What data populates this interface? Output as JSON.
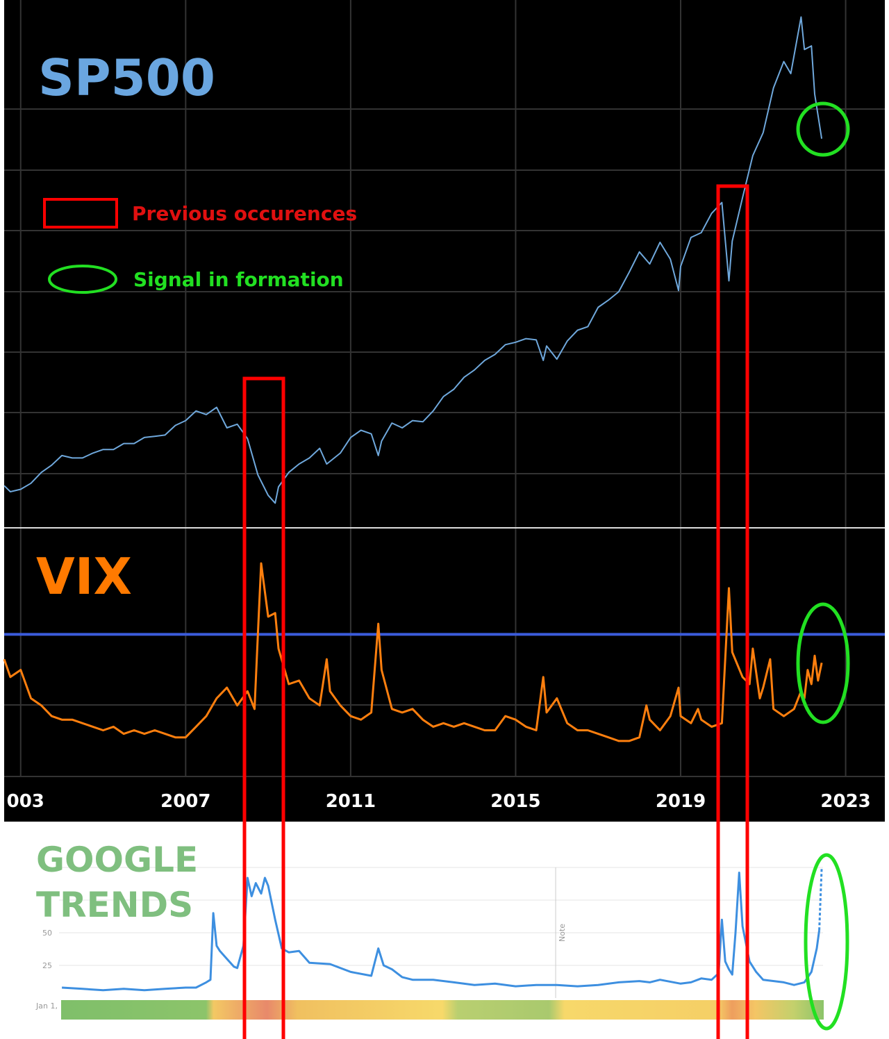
{
  "legend": {
    "previous": "Previous occurences",
    "signal": "Signal in formation"
  },
  "chart_data": [
    {
      "type": "line",
      "title": "SP500",
      "color": "#6fa8dc",
      "xlim": [
        2002.6,
        2023.95
      ],
      "ylim": [
        530,
        4911
      ],
      "x": [
        2002.6,
        2002.75,
        2003.0,
        2003.25,
        2003.5,
        2003.75,
        2004.0,
        2004.25,
        2004.5,
        2004.75,
        2005.0,
        2005.25,
        2005.5,
        2005.75,
        2006.0,
        2006.25,
        2006.5,
        2006.75,
        2007.0,
        2007.25,
        2007.5,
        2007.75,
        2008.0,
        2008.25,
        2008.5,
        2008.75,
        2009.0,
        2009.17,
        2009.25,
        2009.5,
        2009.75,
        2010.0,
        2010.25,
        2010.42,
        2010.75,
        2011.0,
        2011.25,
        2011.5,
        2011.67,
        2011.75,
        2012.0,
        2012.25,
        2012.5,
        2012.75,
        2013.0,
        2013.25,
        2013.5,
        2013.75,
        2014.0,
        2014.25,
        2014.5,
        2014.75,
        2015.0,
        2015.25,
        2015.5,
        2015.67,
        2015.75,
        2016.0,
        2016.25,
        2016.5,
        2016.75,
        2017.0,
        2017.25,
        2017.5,
        2017.75,
        2018.0,
        2018.25,
        2018.5,
        2018.75,
        2018.95,
        2019.0,
        2019.25,
        2019.5,
        2019.75,
        2020.0,
        2020.17,
        2020.25,
        2020.5,
        2020.75,
        2021.0,
        2021.25,
        2021.5,
        2021.67,
        2021.92,
        2022.0,
        2022.17,
        2022.25,
        2022.42
      ],
      "values": [
        880,
        830,
        850,
        900,
        990,
        1050,
        1130,
        1110,
        1110,
        1150,
        1180,
        1180,
        1230,
        1230,
        1280,
        1290,
        1300,
        1380,
        1420,
        1500,
        1470,
        1530,
        1360,
        1390,
        1270,
        970,
        800,
        735,
        870,
        990,
        1060,
        1110,
        1190,
        1060,
        1150,
        1280,
        1340,
        1310,
        1130,
        1250,
        1400,
        1360,
        1420,
        1410,
        1500,
        1620,
        1680,
        1780,
        1840,
        1920,
        1970,
        2050,
        2070,
        2100,
        2090,
        1920,
        2040,
        1930,
        2080,
        2170,
        2200,
        2360,
        2420,
        2490,
        2650,
        2820,
        2720,
        2900,
        2760,
        2500,
        2700,
        2940,
        2980,
        3140,
        3230,
        2580,
        2910,
        3270,
        3620,
        3810,
        4180,
        4400,
        4300,
        4770,
        4500,
        4530,
        4130,
        3760
      ]
    },
    {
      "type": "line",
      "title": "VIX",
      "color": "#ff7f0e",
      "xlim": [
        2002.6,
        2023.95
      ],
      "ylim": [
        0,
        70
      ],
      "xticks": [
        {
          "value": 2003,
          "label": "003"
        },
        2007,
        2011,
        2015,
        2019,
        2023
      ],
      "reference_line": {
        "value": 40,
        "color": "#3b5bdb"
      },
      "x": [
        2002.6,
        2002.75,
        2003.0,
        2003.25,
        2003.5,
        2003.75,
        2004.0,
        2004.25,
        2004.5,
        2004.75,
        2005.0,
        2005.25,
        2005.5,
        2005.75,
        2006.0,
        2006.25,
        2006.5,
        2006.75,
        2007.0,
        2007.25,
        2007.5,
        2007.75,
        2008.0,
        2008.25,
        2008.5,
        2008.67,
        2008.75,
        2008.83,
        2009.0,
        2009.17,
        2009.25,
        2009.5,
        2009.75,
        2010.0,
        2010.25,
        2010.42,
        2010.5,
        2010.75,
        2011.0,
        2011.25,
        2011.5,
        2011.67,
        2011.75,
        2012.0,
        2012.25,
        2012.5,
        2012.75,
        2013.0,
        2013.25,
        2013.5,
        2013.75,
        2014.0,
        2014.25,
        2014.5,
        2014.75,
        2015.0,
        2015.25,
        2015.5,
        2015.67,
        2015.75,
        2016.0,
        2016.25,
        2016.5,
        2016.75,
        2017.0,
        2017.25,
        2017.5,
        2017.75,
        2018.0,
        2018.17,
        2018.25,
        2018.5,
        2018.75,
        2018.95,
        2019.0,
        2019.25,
        2019.42,
        2019.5,
        2019.75,
        2020.0,
        2020.17,
        2020.25,
        2020.5,
        2020.67,
        2020.75,
        2020.92,
        2021.0,
        2021.17,
        2021.25,
        2021.5,
        2021.75,
        2021.92,
        2022.0,
        2022.08,
        2022.17,
        2022.25,
        2022.33,
        2022.42
      ],
      "values": [
        33,
        28,
        30,
        22,
        20,
        17,
        16,
        16,
        15,
        14,
        13,
        14,
        12,
        13,
        12,
        13,
        12,
        11,
        11,
        14,
        17,
        22,
        25,
        20,
        24,
        19,
        40,
        60,
        45,
        46,
        36,
        26,
        27,
        22,
        20,
        33,
        24,
        20,
        17,
        16,
        18,
        43,
        30,
        19,
        18,
        19,
        16,
        14,
        15,
        14,
        15,
        14,
        13,
        13,
        17,
        16,
        14,
        13,
        28,
        18,
        22,
        15,
        13,
        13,
        12,
        11,
        10,
        10,
        11,
        20,
        16,
        13,
        17,
        25,
        17,
        15,
        19,
        16,
        14,
        15,
        53,
        35,
        28,
        26,
        36,
        22,
        25,
        33,
        19,
        17,
        19,
        24,
        22,
        30,
        26,
        34,
        27,
        32
      ]
    },
    {
      "type": "line",
      "title": [
        "GOOGLE",
        "TRENDS"
      ],
      "color": "#3d8fe0",
      "xlim": [
        2002.6,
        2023.95
      ],
      "ylim": [
        0,
        100
      ],
      "yticks": [
        25,
        50
      ],
      "x_start_label": "Jan 1,",
      "note": {
        "x": 2015.97,
        "label": "Note"
      },
      "dashed_last_segment": true,
      "x": [
        2004.0,
        2004.5,
        2005.0,
        2005.5,
        2006.0,
        2006.5,
        2007.0,
        2007.25,
        2007.5,
        2007.6,
        2007.67,
        2007.75,
        2007.83,
        2008.0,
        2008.17,
        2008.25,
        2008.4,
        2008.5,
        2008.6,
        2008.7,
        2008.83,
        2008.92,
        2009.0,
        2009.17,
        2009.33,
        2009.5,
        2009.75,
        2010.0,
        2010.5,
        2011.0,
        2011.5,
        2011.67,
        2011.8,
        2012.0,
        2012.25,
        2012.5,
        2013.0,
        2013.5,
        2014.0,
        2014.5,
        2015.0,
        2015.5,
        2016.0,
        2016.5,
        2017.0,
        2017.5,
        2018.0,
        2018.25,
        2018.5,
        2019.0,
        2019.25,
        2019.5,
        2019.75,
        2019.92,
        2020.0,
        2020.08,
        2020.17,
        2020.25,
        2020.33,
        2020.42,
        2020.5,
        2020.67,
        2020.83,
        2021.0,
        2021.5,
        2021.75,
        2022.0,
        2022.17,
        2022.3,
        2022.36,
        2022.42
      ],
      "values": [
        8,
        7,
        6,
        7,
        6,
        7,
        8,
        8,
        12,
        14,
        65,
        40,
        36,
        30,
        24,
        23,
        40,
        92,
        78,
        88,
        80,
        92,
        86,
        60,
        38,
        35,
        36,
        27,
        26,
        20,
        17,
        38,
        25,
        22,
        16,
        14,
        14,
        12,
        10,
        11,
        9,
        10,
        10,
        9,
        10,
        12,
        13,
        12,
        14,
        11,
        12,
        15,
        14,
        19,
        60,
        28,
        22,
        18,
        50,
        96,
        55,
        28,
        20,
        14,
        12,
        10,
        12,
        20,
        38,
        52,
        100
      ]
    }
  ]
}
